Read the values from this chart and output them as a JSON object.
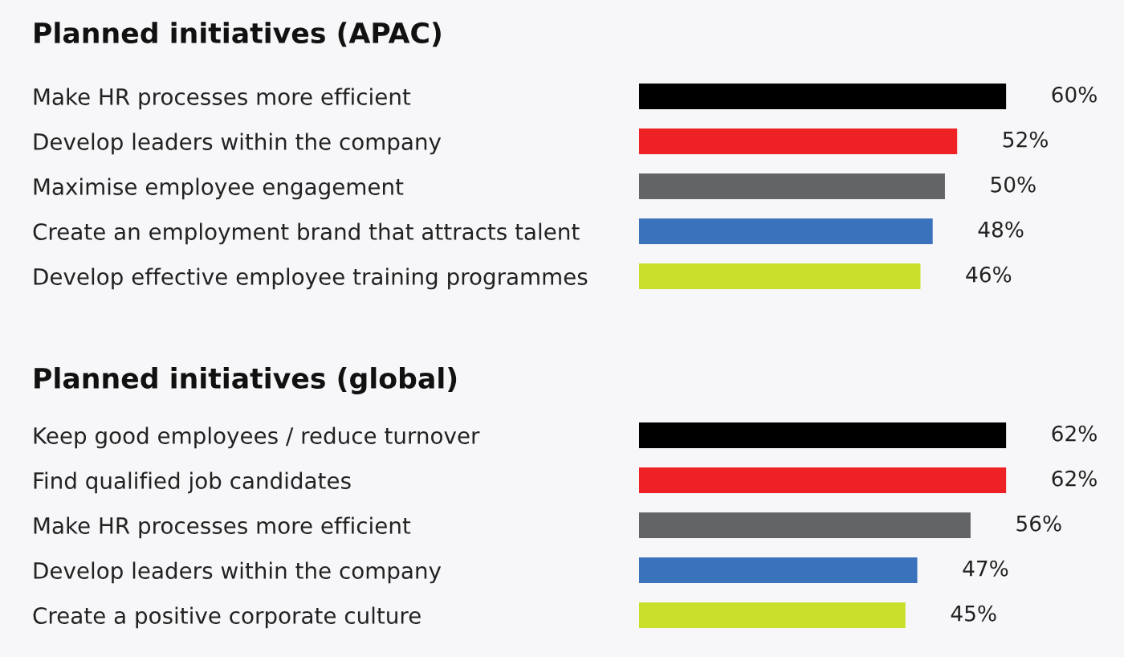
{
  "chart_data": [
    {
      "type": "bar",
      "orientation": "horizontal",
      "title": "Planned initiatives (APAC)",
      "categories": [
        "Make HR processes more efficient",
        "Develop leaders within the company",
        "Maximise employee engagement",
        "Create an employment brand that attracts talent",
        "Develop effective employee training programmes"
      ],
      "values": [
        60,
        52,
        50,
        48,
        46
      ],
      "colors": [
        "#000000",
        "#ee2224",
        "#636466",
        "#3a73bc",
        "#cadf2b"
      ],
      "value_labels": [
        "60%",
        "52%",
        "50%",
        "48%",
        "46%"
      ],
      "tick_labels": "y",
      "legend": false,
      "grid": false
    },
    {
      "type": "bar",
      "orientation": "horizontal",
      "title": "Planned initiatives (global)",
      "categories": [
        "Keep good employees / reduce turnover",
        "Find qualified job candidates",
        "Make HR processes more efficient",
        "Develop leaders within the company",
        "Create a positive corporate culture"
      ],
      "values": [
        62,
        62,
        56,
        47,
        45
      ],
      "colors": [
        "#000000",
        "#ee2224",
        "#636466",
        "#3a73bc",
        "#cadf2b"
      ],
      "value_labels": [
        "62%",
        "62%",
        "56%",
        "47%",
        "45%"
      ],
      "tick_labels": "y",
      "legend": false,
      "grid": false
    }
  ]
}
